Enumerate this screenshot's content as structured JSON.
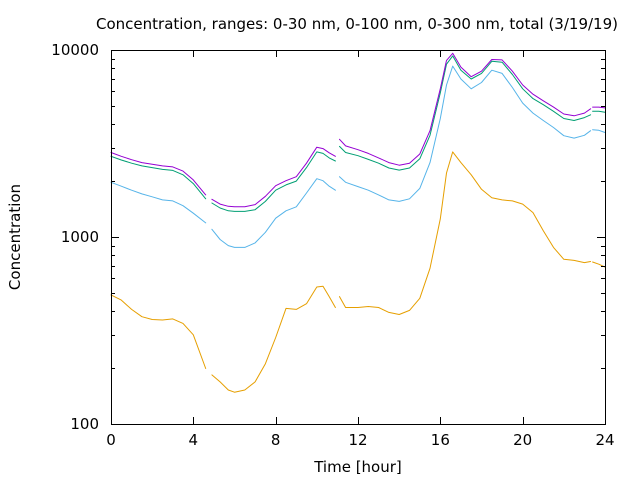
{
  "chart_data": {
    "type": "line",
    "title": "Concentration, ranges: 0-30 nm, 0-100 nm, 0-300 nm, total (3/19/19)",
    "xlabel": "Time [hour]",
    "ylabel": "Concentration",
    "xlim": [
      0,
      24
    ],
    "ylim": [
      100,
      10000
    ],
    "yscale": "log",
    "grid": false,
    "x_ticks": [
      0,
      4,
      8,
      12,
      16,
      20,
      24
    ],
    "x_tick_labels": [
      "0",
      "4",
      "8",
      "12",
      "16",
      "20",
      "24"
    ],
    "y_ticks": [
      100,
      1000,
      10000
    ],
    "y_tick_labels": [
      "100",
      "1000",
      "10000"
    ],
    "series": [
      {
        "color": "#e69f00",
        "segments": [
          [
            [
              0,
              490
            ],
            [
              0.5,
              460
            ],
            [
              1,
              410
            ],
            [
              1.5,
              375
            ],
            [
              2,
              362
            ],
            [
              2.5,
              360
            ],
            [
              3,
              365
            ],
            [
              3.5,
              345
            ],
            [
              4,
              300
            ],
            [
              4.6,
              198
            ]
          ],
          [
            [
              4.9,
              183
            ],
            [
              5.3,
              168
            ],
            [
              5.7,
              152
            ],
            [
              6,
              148
            ],
            [
              6.5,
              152
            ],
            [
              7,
              168
            ],
            [
              7.5,
              210
            ],
            [
              8,
              290
            ],
            [
              8.5,
              415
            ],
            [
              9,
              410
            ],
            [
              9.5,
              440
            ],
            [
              10,
              540
            ],
            [
              10.3,
              545
            ],
            [
              10.6,
              480
            ],
            [
              10.9,
              420
            ]
          ],
          [
            [
              11.1,
              480
            ],
            [
              11.4,
              420
            ],
            [
              12,
              420
            ],
            [
              12.5,
              425
            ],
            [
              13,
              420
            ],
            [
              13.5,
              395
            ],
            [
              14,
              385
            ],
            [
              14.5,
              405
            ],
            [
              15,
              470
            ],
            [
              15.5,
              680
            ],
            [
              16,
              1250
            ],
            [
              16.3,
              2200
            ],
            [
              16.6,
              2850
            ],
            [
              17,
              2500
            ],
            [
              17.5,
              2150
            ],
            [
              18,
              1800
            ],
            [
              18.5,
              1620
            ],
            [
              19,
              1580
            ],
            [
              19.5,
              1560
            ],
            [
              20,
              1500
            ],
            [
              20.5,
              1350
            ],
            [
              21,
              1080
            ],
            [
              21.5,
              880
            ],
            [
              22,
              760
            ],
            [
              22.5,
              750
            ],
            [
              23,
              730
            ],
            [
              23.3,
              740
            ]
          ],
          [
            [
              23.4,
              735
            ],
            [
              23.7,
              715
            ],
            [
              24,
              690
            ]
          ]
        ]
      },
      {
        "color": "#56b4e9",
        "segments": [
          [
            [
              0,
              1960
            ],
            [
              0.5,
              1870
            ],
            [
              1,
              1780
            ],
            [
              1.5,
              1700
            ],
            [
              2,
              1640
            ],
            [
              2.5,
              1580
            ],
            [
              3,
              1560
            ],
            [
              3.5,
              1470
            ],
            [
              4,
              1340
            ],
            [
              4.6,
              1190
            ]
          ],
          [
            [
              4.9,
              1100
            ],
            [
              5.3,
              970
            ],
            [
              5.7,
              900
            ],
            [
              6,
              880
            ],
            [
              6.5,
              880
            ],
            [
              7,
              930
            ],
            [
              7.5,
              1060
            ],
            [
              8,
              1260
            ],
            [
              8.5,
              1380
            ],
            [
              9,
              1450
            ],
            [
              9.5,
              1720
            ],
            [
              10,
              2050
            ],
            [
              10.3,
              2000
            ],
            [
              10.6,
              1870
            ],
            [
              10.9,
              1780
            ]
          ],
          [
            [
              11.1,
              2100
            ],
            [
              11.4,
              1960
            ],
            [
              12,
              1860
            ],
            [
              12.5,
              1780
            ],
            [
              13,
              1680
            ],
            [
              13.5,
              1580
            ],
            [
              14,
              1550
            ],
            [
              14.5,
              1600
            ],
            [
              15,
              1820
            ],
            [
              15.5,
              2500
            ],
            [
              16,
              4300
            ],
            [
              16.3,
              6500
            ],
            [
              16.6,
              8200
            ],
            [
              17,
              7000
            ],
            [
              17.5,
              6200
            ],
            [
              18,
              6700
            ],
            [
              18.5,
              7800
            ],
            [
              19,
              7500
            ],
            [
              19.5,
              6300
            ],
            [
              20,
              5200
            ],
            [
              20.5,
              4600
            ],
            [
              21,
              4200
            ],
            [
              21.5,
              3850
            ],
            [
              22,
              3480
            ],
            [
              22.5,
              3380
            ],
            [
              23,
              3500
            ],
            [
              23.3,
              3700
            ]
          ],
          [
            [
              23.4,
              3750
            ],
            [
              23.7,
              3720
            ],
            [
              24,
              3620
            ]
          ]
        ]
      },
      {
        "color": "#009e73",
        "segments": [
          [
            [
              0,
              2700
            ],
            [
              0.5,
              2580
            ],
            [
              1,
              2480
            ],
            [
              1.5,
              2400
            ],
            [
              2,
              2350
            ],
            [
              2.5,
              2300
            ],
            [
              3,
              2270
            ],
            [
              3.5,
              2150
            ],
            [
              4,
              1930
            ],
            [
              4.6,
              1600
            ]
          ],
          [
            [
              4.9,
              1520
            ],
            [
              5.3,
              1430
            ],
            [
              5.7,
              1380
            ],
            [
              6,
              1370
            ],
            [
              6.5,
              1370
            ],
            [
              7,
              1400
            ],
            [
              7.5,
              1550
            ],
            [
              8,
              1780
            ],
            [
              8.5,
              1900
            ],
            [
              9,
              1990
            ],
            [
              9.5,
              2350
            ],
            [
              10,
              2850
            ],
            [
              10.3,
              2800
            ],
            [
              10.6,
              2650
            ],
            [
              10.9,
              2550
            ]
          ],
          [
            [
              11.1,
              3050
            ],
            [
              11.4,
              2830
            ],
            [
              12,
              2720
            ],
            [
              12.5,
              2600
            ],
            [
              13,
              2480
            ],
            [
              13.5,
              2340
            ],
            [
              14,
              2280
            ],
            [
              14.5,
              2340
            ],
            [
              15,
              2620
            ],
            [
              15.5,
              3500
            ],
            [
              16,
              5900
            ],
            [
              16.3,
              8400
            ],
            [
              16.6,
              9300
            ],
            [
              17,
              7800
            ],
            [
              17.5,
              7000
            ],
            [
              18,
              7500
            ],
            [
              18.5,
              8700
            ],
            [
              19,
              8600
            ],
            [
              19.5,
              7400
            ],
            [
              20,
              6200
            ],
            [
              20.5,
              5500
            ],
            [
              21,
              5100
            ],
            [
              21.5,
              4700
            ],
            [
              22,
              4300
            ],
            [
              22.5,
              4200
            ],
            [
              23,
              4350
            ],
            [
              23.3,
              4500
            ]
          ],
          [
            [
              23.4,
              4700
            ],
            [
              23.7,
              4700
            ],
            [
              24,
              4650
            ]
          ]
        ]
      },
      {
        "color": "#9400d3",
        "segments": [
          [
            [
              0,
              2830
            ],
            [
              0.5,
              2700
            ],
            [
              1,
              2590
            ],
            [
              1.5,
              2500
            ],
            [
              2,
              2450
            ],
            [
              2.5,
              2400
            ],
            [
              3,
              2370
            ],
            [
              3.5,
              2250
            ],
            [
              4,
              2020
            ],
            [
              4.6,
              1680
            ]
          ],
          [
            [
              4.9,
              1590
            ],
            [
              5.3,
              1500
            ],
            [
              5.7,
              1460
            ],
            [
              6,
              1450
            ],
            [
              6.5,
              1450
            ],
            [
              7,
              1490
            ],
            [
              7.5,
              1650
            ],
            [
              8,
              1880
            ],
            [
              8.5,
              2000
            ],
            [
              9,
              2100
            ],
            [
              9.5,
              2480
            ],
            [
              10,
              3020
            ],
            [
              10.3,
              2970
            ],
            [
              10.6,
              2820
            ],
            [
              10.9,
              2700
            ]
          ],
          [
            [
              11.1,
              3330
            ],
            [
              11.4,
              3070
            ],
            [
              12,
              2930
            ],
            [
              12.5,
              2800
            ],
            [
              13,
              2650
            ],
            [
              13.5,
              2500
            ],
            [
              14,
              2420
            ],
            [
              14.5,
              2480
            ],
            [
              15,
              2780
            ],
            [
              15.5,
              3700
            ],
            [
              16,
              6200
            ],
            [
              16.3,
              8800
            ],
            [
              16.6,
              9600
            ],
            [
              17,
              8100
            ],
            [
              17.5,
              7200
            ],
            [
              18,
              7700
            ],
            [
              18.5,
              8900
            ],
            [
              19,
              8850
            ],
            [
              19.5,
              7700
            ],
            [
              20,
              6500
            ],
            [
              20.5,
              5800
            ],
            [
              21,
              5350
            ],
            [
              21.5,
              4950
            ],
            [
              22,
              4550
            ],
            [
              22.5,
              4450
            ],
            [
              23,
              4600
            ],
            [
              23.3,
              4850
            ]
          ],
          [
            [
              23.4,
              4950
            ],
            [
              23.7,
              4950
            ],
            [
              24,
              4900
            ]
          ]
        ]
      }
    ]
  }
}
